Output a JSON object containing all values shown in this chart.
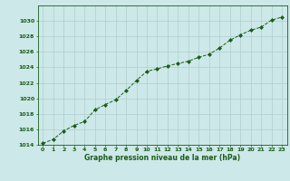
{
  "x": [
    0,
    1,
    2,
    3,
    4,
    5,
    6,
    7,
    8,
    9,
    10,
    11,
    12,
    13,
    14,
    15,
    16,
    17,
    18,
    19,
    20,
    21,
    22,
    23
  ],
  "y": [
    1014.2,
    1014.7,
    1015.8,
    1016.5,
    1017.0,
    1018.5,
    1019.2,
    1019.8,
    1021.0,
    1022.3,
    1023.5,
    1023.8,
    1024.2,
    1024.5,
    1024.8,
    1025.3,
    1025.7,
    1026.5,
    1027.5,
    1028.2,
    1028.8,
    1029.2,
    1030.1,
    1030.5
  ],
  "ylim": [
    1014,
    1032
  ],
  "yticks": [
    1014,
    1016,
    1018,
    1020,
    1022,
    1024,
    1026,
    1028,
    1030
  ],
  "xlabel": "Graphe pression niveau de la mer (hPa)",
  "line_color": "#1a5c1a",
  "marker": "D",
  "marker_size": 2.0,
  "bg_color": "#cde8e8",
  "grid_color": "#b0cccc",
  "title_color": "#1a5c1a",
  "fig_bg": "#cde8e8"
}
